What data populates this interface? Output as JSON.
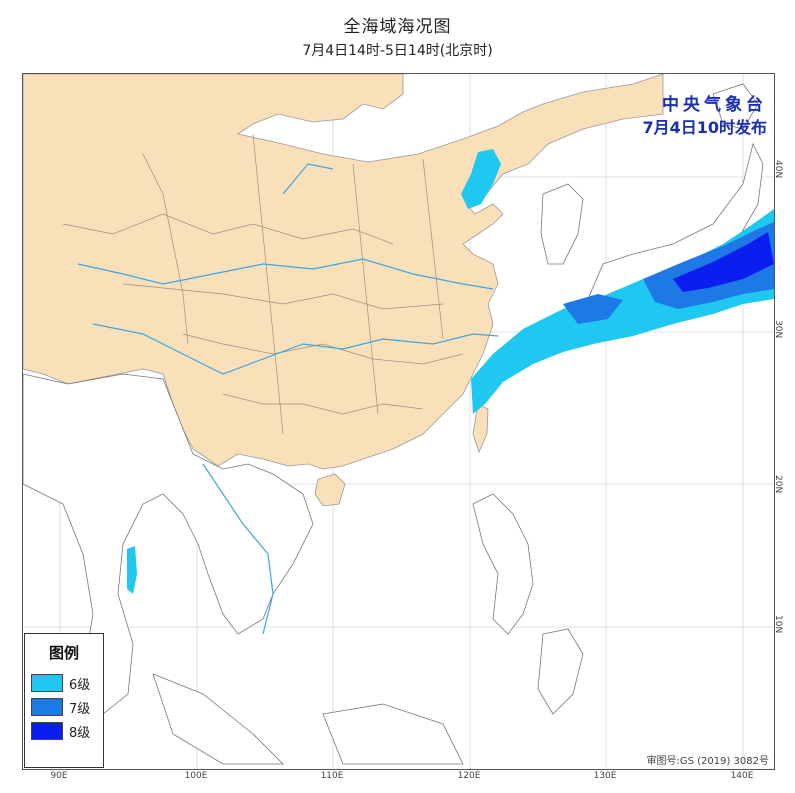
{
  "header": {
    "title": "全海域海况图",
    "subtitle": "7月4日14时-5日14时(北京时)"
  },
  "agency": {
    "name": "中央气象台",
    "issue_time": "7月4日10时发布"
  },
  "axes": {
    "longitude_labels": [
      "90E",
      "100E",
      "110E",
      "120E",
      "130E",
      "140E"
    ],
    "latitude_labels": [
      "40N",
      "30N",
      "20N",
      "10N"
    ]
  },
  "legend": {
    "title": "图例",
    "items": [
      {
        "label": "6级",
        "color": "#1ec8f0"
      },
      {
        "label": "7级",
        "color": "#1e78e6"
      },
      {
        "label": "8级",
        "color": "#0a1ef0"
      }
    ]
  },
  "map": {
    "land_color": "#fae0b8",
    "river_color": "#3aa6e6",
    "boundary_color": "#888888"
  },
  "review_number": "审图号:GS (2019) 3082号"
}
